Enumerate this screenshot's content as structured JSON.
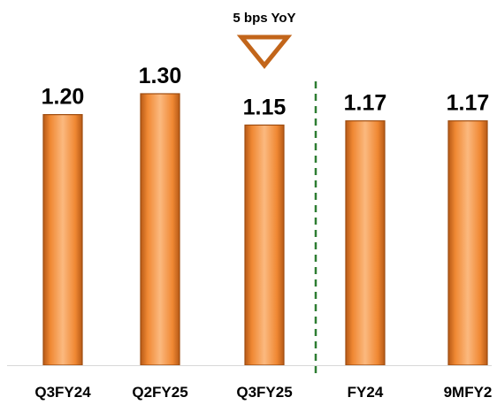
{
  "chart_data": {
    "type": "bar",
    "categories": [
      "Q3FY24",
      "Q2FY25",
      "Q3FY25",
      "FY24",
      "9MFY2"
    ],
    "values": [
      1.2,
      1.3,
      1.15,
      1.17,
      1.17
    ],
    "value_labels": [
      "1.20",
      "1.30",
      "1.15",
      "1.17",
      "1.17"
    ],
    "title": "",
    "xlabel": "",
    "ylabel": "",
    "ylim": [
      0,
      1.3
    ],
    "grid": false,
    "legend": "none",
    "annotation": {
      "text": "5 bps YoY",
      "marker": "down-triangle-outline",
      "target_category": "Q3FY25"
    },
    "separator": {
      "style": "dashed-vertical",
      "between": [
        "Q3FY25",
        "FY24"
      ]
    },
    "colors": {
      "bar": "#F08833",
      "bar_edge": "#9E4C10",
      "bar_highlight": "#FBB97F",
      "marker": "#C2651A",
      "separator": "#2E7D32",
      "axis": "#D8D8D8"
    }
  }
}
